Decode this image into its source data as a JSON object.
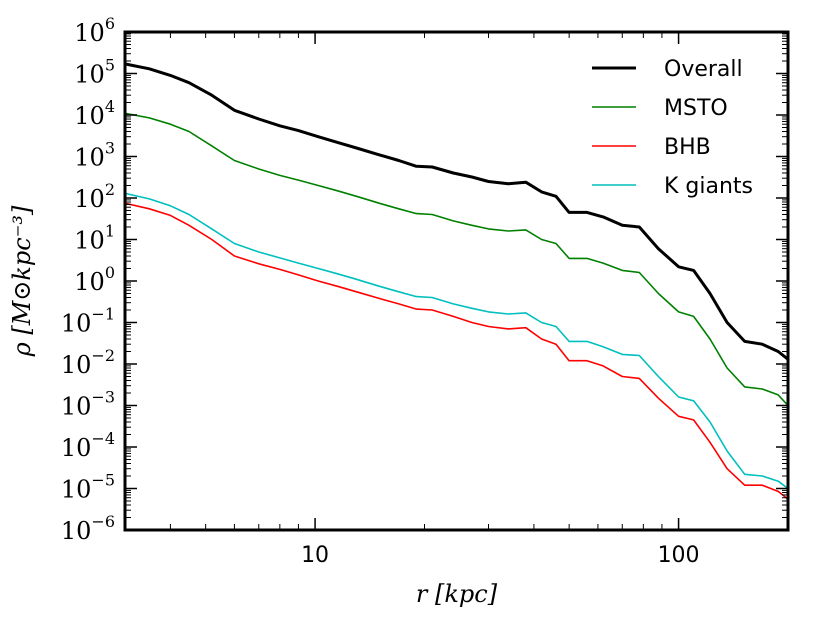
{
  "chart_data": {
    "type": "line",
    "title": "",
    "xlabel": "r [kpc]",
    "ylabel": "ρ [M⊙kpc⁻³]",
    "xscale": "log",
    "yscale": "log",
    "xlim": [
      3,
      200
    ],
    "ylim": [
      1e-06,
      1000000.0
    ],
    "xticks": [
      {
        "value": 10,
        "label": "10"
      },
      {
        "value": 100,
        "label": "100"
      }
    ],
    "yticks": [
      {
        "value": 1000000.0,
        "base": "10",
        "exp": "6"
      },
      {
        "value": 100000.0,
        "base": "10",
        "exp": "5"
      },
      {
        "value": 10000.0,
        "base": "10",
        "exp": "4"
      },
      {
        "value": 1000.0,
        "base": "10",
        "exp": "3"
      },
      {
        "value": 100.0,
        "base": "10",
        "exp": "2"
      },
      {
        "value": 10.0,
        "base": "10",
        "exp": "1"
      },
      {
        "value": 1.0,
        "base": "10",
        "exp": "0"
      },
      {
        "value": 0.1,
        "base": "10",
        "exp": "−1"
      },
      {
        "value": 0.01,
        "base": "10",
        "exp": "−2"
      },
      {
        "value": 0.001,
        "base": "10",
        "exp": "−3"
      },
      {
        "value": 0.0001,
        "base": "10",
        "exp": "−4"
      },
      {
        "value": 1e-05,
        "base": "10",
        "exp": "−5"
      },
      {
        "value": 1e-06,
        "base": "10",
        "exp": "−6"
      }
    ],
    "grid": false,
    "legend_position": "top-right",
    "series": [
      {
        "name": "Overall",
        "color": "#000000",
        "width": 3,
        "x": [
          3.0,
          3.5,
          4.0,
          4.5,
          5.2,
          6.0,
          7.0,
          8.0,
          9.0,
          10.2,
          11.5,
          13.0,
          15.0,
          17.0,
          19.0,
          21.0,
          24.0,
          27.0,
          30.0,
          34.0,
          38.0,
          42.0,
          46.0,
          50.0,
          56.0,
          62.0,
          70.0,
          78.0,
          88.0,
          100.0,
          110.0,
          122.0,
          136.0,
          152.0,
          170.0,
          188.0,
          200.0
        ],
        "values": [
          170000,
          130000,
          90000,
          60000,
          30000,
          13000,
          8000,
          5500,
          4200,
          3000,
          2200,
          1600,
          1100,
          800,
          580,
          560,
          400,
          320,
          250,
          220,
          240,
          140,
          110,
          45,
          45,
          35,
          22,
          20,
          6,
          2.2,
          1.8,
          0.5,
          0.1,
          0.035,
          0.03,
          0.02,
          0.013
        ]
      },
      {
        "name": "MSTO",
        "color": "#008000",
        "width": 1.6,
        "x": [
          3.0,
          3.5,
          4.0,
          4.5,
          5.2,
          6.0,
          7.0,
          8.0,
          9.0,
          10.2,
          11.5,
          13.0,
          15.0,
          17.0,
          19.0,
          21.0,
          24.0,
          27.0,
          30.0,
          34.0,
          38.0,
          42.0,
          46.0,
          50.0,
          56.0,
          62.0,
          70.0,
          78.0,
          88.0,
          100.0,
          110.0,
          122.0,
          136.0,
          152.0,
          170.0,
          188.0,
          200.0
        ],
        "values": [
          11000,
          8500,
          6000,
          4000,
          1800,
          800,
          500,
          350,
          270,
          200,
          150,
          110,
          75,
          55,
          42,
          40,
          28,
          22,
          18,
          16,
          17,
          10,
          8,
          3.5,
          3.5,
          2.7,
          1.8,
          1.6,
          0.5,
          0.18,
          0.14,
          0.04,
          0.008,
          0.0028,
          0.0025,
          0.0018,
          0.001
        ]
      },
      {
        "name": "BHB",
        "color": "#ff0000",
        "width": 1.6,
        "x": [
          3.0,
          3.5,
          4.0,
          4.5,
          5.2,
          6.0,
          7.0,
          8.0,
          9.0,
          10.2,
          11.5,
          13.0,
          15.0,
          17.0,
          19.0,
          21.0,
          24.0,
          27.0,
          30.0,
          34.0,
          38.0,
          42.0,
          46.0,
          50.0,
          56.0,
          62.0,
          70.0,
          78.0,
          88.0,
          100.0,
          110.0,
          122.0,
          136.0,
          152.0,
          170.0,
          188.0,
          200.0
        ],
        "values": [
          75,
          55,
          38,
          22,
          10,
          4,
          2.6,
          1.9,
          1.4,
          1.0,
          0.75,
          0.55,
          0.38,
          0.28,
          0.21,
          0.2,
          0.14,
          0.1,
          0.08,
          0.07,
          0.075,
          0.04,
          0.03,
          0.012,
          0.012,
          0.009,
          0.005,
          0.0045,
          0.0015,
          0.00055,
          0.00045,
          0.00013,
          3e-05,
          1.2e-05,
          1.2e-05,
          8.5e-06,
          5.5e-06
        ]
      },
      {
        "name": "K giants",
        "color": "#00bfbf",
        "width": 1.6,
        "x": [
          3.0,
          3.5,
          4.0,
          4.5,
          5.2,
          6.0,
          7.0,
          8.0,
          9.0,
          10.2,
          11.5,
          13.0,
          15.0,
          17.0,
          19.0,
          21.0,
          24.0,
          27.0,
          30.0,
          34.0,
          38.0,
          42.0,
          46.0,
          50.0,
          56.0,
          62.0,
          70.0,
          78.0,
          88.0,
          100.0,
          110.0,
          122.0,
          136.0,
          152.0,
          170.0,
          188.0,
          200.0
        ],
        "values": [
          130,
          95,
          65,
          40,
          18,
          8,
          5,
          3.6,
          2.7,
          2.0,
          1.5,
          1.1,
          0.75,
          0.55,
          0.42,
          0.4,
          0.28,
          0.22,
          0.18,
          0.16,
          0.17,
          0.1,
          0.08,
          0.035,
          0.035,
          0.026,
          0.017,
          0.016,
          0.005,
          0.0016,
          0.0013,
          0.0004,
          8e-05,
          2.2e-05,
          2e-05,
          1.5e-05,
          1e-05
        ]
      }
    ]
  }
}
